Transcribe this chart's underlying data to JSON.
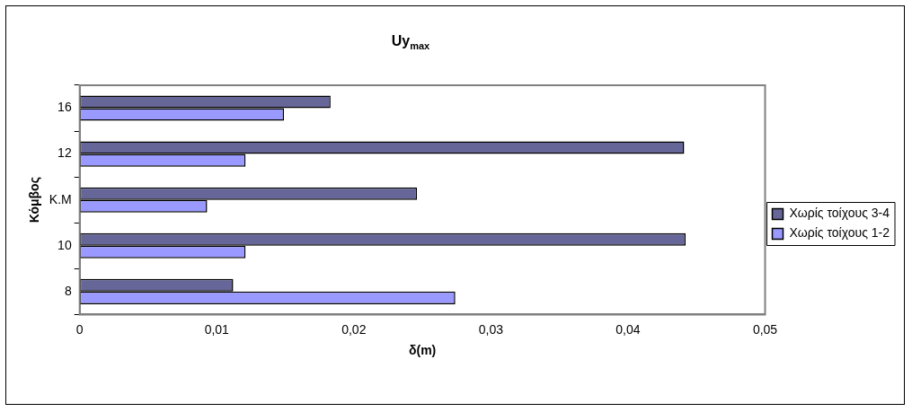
{
  "chart_data": {
    "type": "bar",
    "orientation": "horizontal",
    "title": "Uy$_{max}$",
    "xlabel": "δ(m)",
    "ylabel": "Κόμβος",
    "categories": [
      "16",
      "12",
      "K.M",
      "10",
      "8"
    ],
    "series": [
      {
        "name": "Χωρίς τοίχους 3-4",
        "color": "#666699",
        "values": [
          0.0183,
          0.0441,
          0.0246,
          0.0442,
          0.0112
        ]
      },
      {
        "name": "Χωρίς τοίχους 1-2",
        "color": "#9999ff",
        "values": [
          0.0149,
          0.0121,
          0.0093,
          0.0121,
          0.0274
        ]
      }
    ],
    "xlim": [
      0,
      0.05
    ],
    "xticks": [
      0,
      {
        "value": 0.01,
        "label": "0,01"
      },
      {
        "value": 0.02,
        "label": "0,02"
      },
      {
        "value": 0.03,
        "label": "0,03"
      },
      {
        "value": 0.04,
        "label": "0,04"
      },
      {
        "value": 0.05,
        "label": "0,05"
      }
    ],
    "grid": false,
    "legend": "right"
  }
}
